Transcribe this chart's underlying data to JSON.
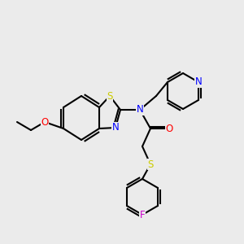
{
  "background_color": "#ebebeb",
  "bond_color": "#000000",
  "bond_width": 1.5,
  "atom_colors": {
    "S": "#cccc00",
    "N": "#0000ff",
    "O": "#ff0000",
    "F": "#cc00cc",
    "C": "#000000"
  },
  "figsize": [
    3.0,
    3.0
  ],
  "dpi": 100
}
